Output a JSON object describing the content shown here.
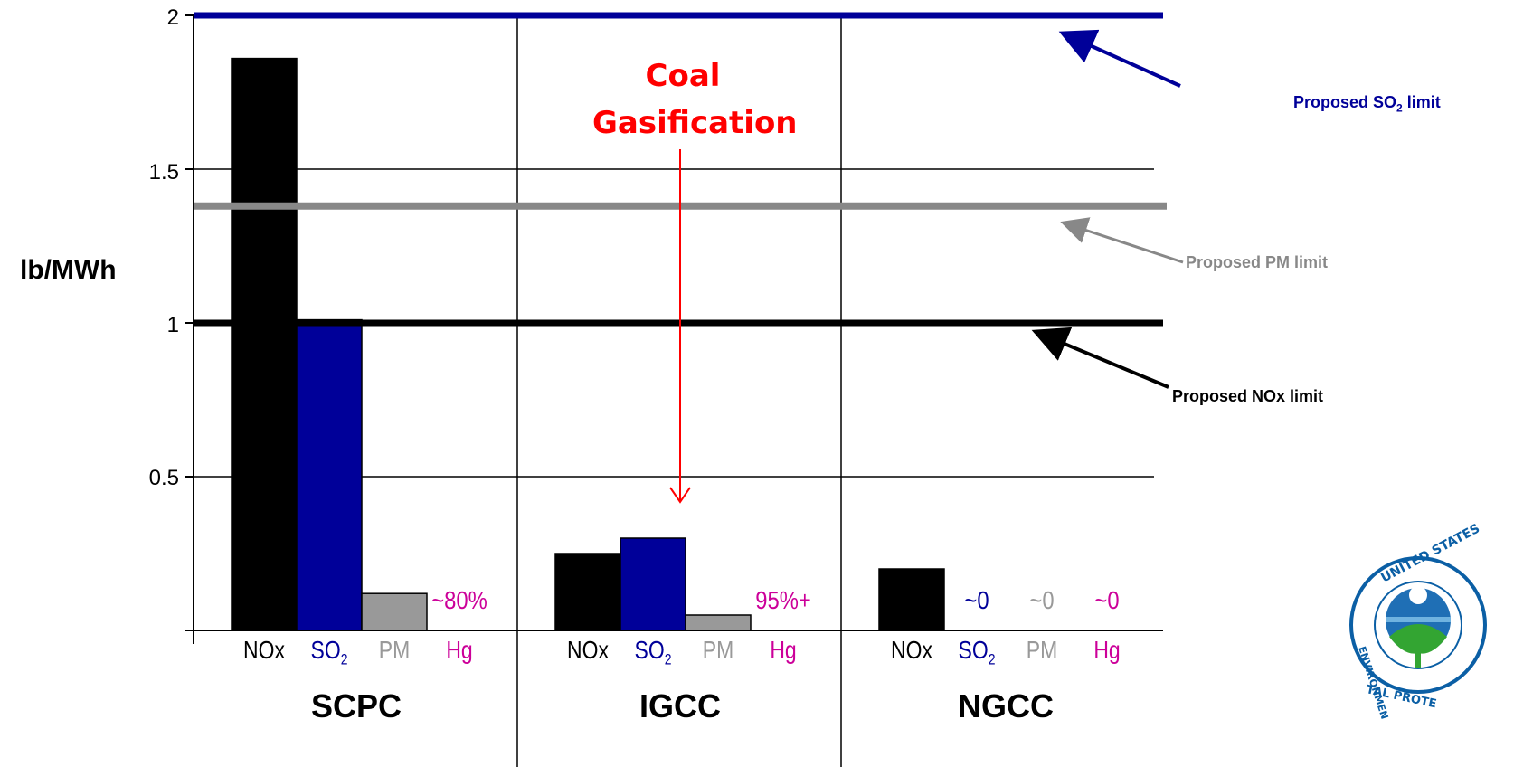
{
  "chart_data": {
    "type": "bar",
    "ylabel": "lb/MWh",
    "ylim": [
      0,
      2
    ],
    "yticks": [
      "0.5",
      "1",
      "1.5",
      "2"
    ],
    "grid": true,
    "groups": [
      {
        "name": "SCPC",
        "bars": [
          {
            "name": "NOx",
            "value": 1.86,
            "color": "#000000"
          },
          {
            "name": "SO2",
            "value": 1.01,
            "color": "#000099"
          },
          {
            "name": "PM",
            "value": 0.12,
            "color": "#999999"
          },
          {
            "name": "Hg",
            "value": null,
            "color": "#cc0099",
            "label": "~80%"
          }
        ]
      },
      {
        "name": "IGCC",
        "bars": [
          {
            "name": "NOx",
            "value": 0.25,
            "color": "#000000"
          },
          {
            "name": "SO2",
            "value": 0.3,
            "color": "#000099"
          },
          {
            "name": "PM",
            "value": 0.05,
            "color": "#999999"
          },
          {
            "name": "Hg",
            "value": null,
            "color": "#cc0099",
            "label": "95%+"
          }
        ]
      },
      {
        "name": "NGCC",
        "bars": [
          {
            "name": "NOx",
            "value": 0.2,
            "color": "#000000"
          },
          {
            "name": "SO2",
            "value": null,
            "color": "#000099",
            "label": "~0"
          },
          {
            "name": "PM",
            "value": null,
            "color": "#999999",
            "label": "~0"
          },
          {
            "name": "Hg",
            "value": null,
            "color": "#cc0099",
            "label": "~0"
          }
        ]
      }
    ],
    "limits": [
      {
        "name": "Proposed SO2 limit",
        "value": 2.0,
        "color": "#000099"
      },
      {
        "name": "Proposed PM limit",
        "value": 1.38,
        "color": "#888888"
      },
      {
        "name": "Proposed NOx limit",
        "value": 1.0,
        "color": "#000000"
      }
    ],
    "annotations": {
      "coal_gasification": [
        "Coal",
        "Gasification"
      ]
    }
  },
  "labels": {
    "so2_limit_pre": "Proposed SO",
    "so2_limit_sub": "2",
    "so2_limit_post": " limit",
    "pm_limit": "Proposed PM limit",
    "nox_limit": "Proposed NOx limit",
    "coal_line1": "Coal",
    "coal_line2": "Gasification",
    "so2_sub": "2",
    "so": "SO"
  },
  "logo": {
    "text": "UNITED STATES ENVIRONMENTAL PROTECTION AGENCY",
    "colors": {
      "ring": "#0b5fa5",
      "leaf": "#33a532",
      "water": "#1f6fb5"
    }
  }
}
